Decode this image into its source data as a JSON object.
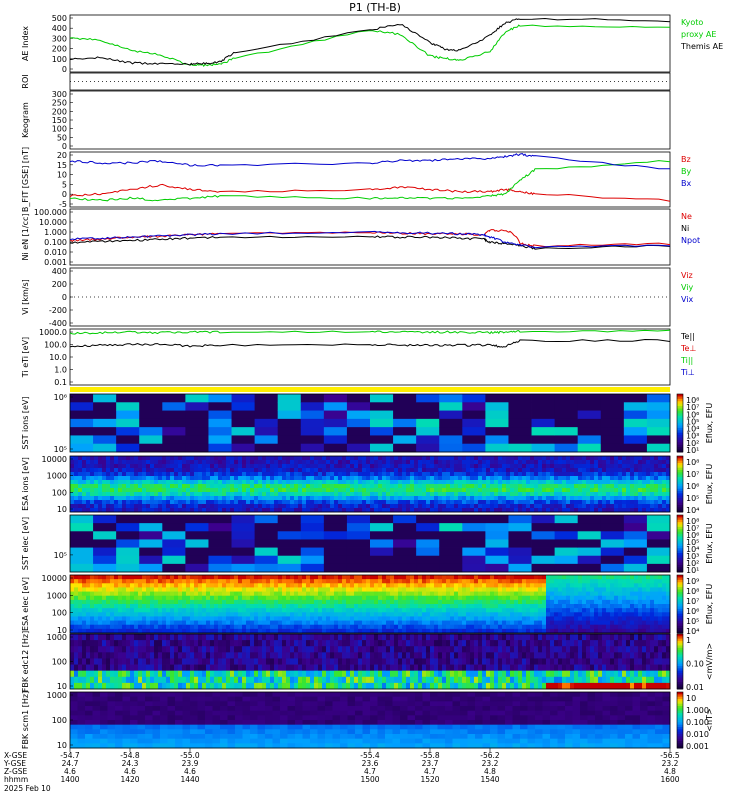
{
  "title": "P1  (TH-B)",
  "panels": [
    {
      "id": "ae",
      "ylabel": "AE Index",
      "ticks": [
        "500",
        "400",
        "300",
        "200",
        "100",
        "0"
      ],
      "legend": [
        {
          "text": "Kyoto",
          "color": "#00cc00"
        },
        {
          "text": "proxy AE",
          "color": "#00cc00"
        },
        {
          "text": "Themis AE",
          "color": "#000000"
        }
      ]
    },
    {
      "id": "roi",
      "ylabel": "ROI",
      "ticks": [],
      "legend": []
    },
    {
      "id": "keogram",
      "ylabel": "Keogram",
      "ticks": [
        "300",
        "250",
        "200",
        "150",
        "100",
        "50",
        "0"
      ],
      "legend": []
    },
    {
      "id": "bfit",
      "ylabel": "B_FIT [GSE] [nT]",
      "ticks": [
        "20",
        "15",
        "10",
        "5",
        "0",
        "-5"
      ],
      "legend": [
        {
          "text": "Bz",
          "color": "#dd0000"
        },
        {
          "text": "By",
          "color": "#00cc00"
        },
        {
          "text": "Bx",
          "color": "#0000cc"
        }
      ]
    },
    {
      "id": "ni",
      "ylabel": "Ni eN [1/cc]",
      "ticks": [
        "100.000",
        "10.000",
        "1.000",
        "0.100",
        "0.010",
        "0.001"
      ],
      "legend": [
        {
          "text": "Ne",
          "color": "#dd0000"
        },
        {
          "text": "Ni",
          "color": "#000000"
        },
        {
          "text": "Npot",
          "color": "#0000cc"
        }
      ]
    },
    {
      "id": "vi",
      "ylabel": "Vi [km/s]",
      "ticks": [
        "400",
        "200",
        "0",
        "-200",
        "-400"
      ],
      "legend": [
        {
          "text": "Viz",
          "color": "#dd0000"
        },
        {
          "text": "Viy",
          "color": "#00cc00"
        },
        {
          "text": "Vix",
          "color": "#0000cc"
        }
      ]
    },
    {
      "id": "ti",
      "ylabel": "Ti eTi [eV]",
      "ticks": [
        "1000.0",
        "100.0",
        "10.0",
        "1.0",
        "0.1"
      ],
      "legend": [
        {
          "text": "Te||",
          "color": "#000000"
        },
        {
          "text": "Te⊥",
          "color": "#dd0000"
        },
        {
          "text": "Ti||",
          "color": "#00cc00"
        },
        {
          "text": "Ti⊥",
          "color": "#0000cc"
        }
      ]
    },
    {
      "id": "sst_i",
      "ylabel": "SST ions [eV]",
      "ticks": [
        "10⁶",
        "10⁵"
      ],
      "colorbar": [
        "10⁸",
        "10⁷",
        "10⁶",
        "10⁵",
        "10⁴",
        "10³",
        "10²",
        "10¹"
      ],
      "cblabel": "Eflux, EFU"
    },
    {
      "id": "esa_i",
      "ylabel": "ESA ions [eV]",
      "ticks": [
        "10000",
        "1000",
        "100",
        "10"
      ],
      "colorbar": [
        "10⁸",
        "10⁷",
        "10⁶",
        "10⁵",
        "10⁴"
      ],
      "cblabel": "Eflux, EFU"
    },
    {
      "id": "sst_e",
      "ylabel": "SST elec [eV]",
      "ticks": [
        "10⁵"
      ],
      "colorbar": [
        "10⁸",
        "10⁷",
        "10⁶",
        "10⁵",
        "10⁴",
        "10³",
        "10²",
        "10¹"
      ],
      "cblabel": "Eflux, EFU"
    },
    {
      "id": "esa_e",
      "ylabel": "ESA elec [eV]",
      "ticks": [
        "10000",
        "1000",
        "100",
        "10"
      ],
      "colorbar": [
        "10⁹",
        "10⁸",
        "10⁷",
        "10⁶",
        "10⁵",
        "10⁴"
      ],
      "cblabel": "Eflux, EFU"
    },
    {
      "id": "fbk_e",
      "ylabel": "FBK edc12 [Hz]",
      "ticks": [
        "1000",
        "100",
        "10"
      ],
      "colorbar": [
        "1",
        "0.10",
        "0.01"
      ],
      "cblabel": "<mV/m>"
    },
    {
      "id": "fbk_b",
      "ylabel": "FBK scm1 [Hz]",
      "ticks": [
        "1000",
        "100",
        "10"
      ],
      "colorbar": [
        "10",
        "1.000",
        "0.100",
        "0.010",
        "0.001"
      ],
      "cblabel": "<nT>"
    }
  ],
  "xaxis": {
    "row_labels": [
      "X-GSE",
      "Y-GSE",
      "Z-GSE",
      "hhmm",
      "2025 Feb 10"
    ],
    "columns": [
      {
        "x": "-54.7",
        "y": "24.7",
        "z": "4.6",
        "t": "1400"
      },
      {
        "x": "-54.8",
        "y": "24.3",
        "z": "4.6",
        "t": "1420"
      },
      {
        "x": "-55.0",
        "y": "23.9",
        "z": "4.6",
        "t": "1440"
      },
      {
        "x": "-55.4",
        "y": "23.6",
        "z": "4.7",
        "t": "1500"
      },
      {
        "x": "-55.8",
        "y": "23.7",
        "z": "4.7",
        "t": "1520"
      },
      {
        "x": "-56.2",
        "y": "23.2",
        "z": "4.8",
        "t": "1540"
      },
      {
        "x": "-56.5",
        "y": "23.2",
        "z": "4.8",
        "t": "1600"
      }
    ]
  },
  "chart_data": [
    {
      "type": "line",
      "title": "P1  (TH-B)",
      "ylabel": "AE Index",
      "xlabel": "hhmm",
      "ylim": [
        0,
        500
      ],
      "x": [
        1400,
        1410,
        1420,
        1430,
        1440,
        1445,
        1450,
        1455,
        1500,
        1510,
        1520,
        1525,
        1530,
        1540,
        1545,
        1550,
        1600
      ],
      "series": [
        {
          "name": "Kyoto proxy AE",
          "color": "#00cc00",
          "values": [
            300,
            280,
            190,
            150,
            60,
            60,
            70,
            120,
            370,
            330,
            140,
            120,
            100,
            180,
            350,
            410,
            390
          ]
        },
        {
          "name": "Themis AE",
          "color": "#000000",
          "values": [
            110,
            130,
            80,
            70,
            70,
            75,
            90,
            170,
            370,
            420,
            260,
            200,
            190,
            320,
            430,
            470,
            450
          ]
        }
      ]
    },
    {
      "type": "line",
      "ylabel": "B_FIT [GSE] [nT]",
      "ylim": [
        -5,
        20
      ],
      "x": [
        1400,
        1410,
        1420,
        1430,
        1440,
        1450,
        1500,
        1510,
        1520,
        1530,
        1540,
        1545,
        1550,
        1555,
        1600
      ],
      "series": [
        {
          "name": "Bz",
          "color": "#dd0000",
          "values": [
            0,
            1,
            3,
            5,
            3,
            2,
            3,
            4,
            3,
            2,
            2,
            3,
            2,
            1,
            -2
          ]
        },
        {
          "name": "By",
          "color": "#00cc00",
          "values": [
            -1,
            -2,
            -1,
            -2,
            -1,
            0,
            -1,
            -1,
            -1,
            -1,
            0,
            1,
            7,
            12,
            16
          ]
        },
        {
          "name": "Bx",
          "color": "#0000cc",
          "values": [
            16,
            15,
            15,
            16,
            14,
            14,
            15,
            16,
            16,
            17,
            17,
            18,
            19,
            18,
            12
          ]
        }
      ]
    },
    {
      "type": "line",
      "ylabel": "Ni eN [1/cc]",
      "ylim": [
        0.001,
        100
      ],
      "x": [
        1400,
        1410,
        1420,
        1430,
        1440,
        1450,
        1500,
        1510,
        1520,
        1530,
        1538,
        1540,
        1545,
        1550,
        1555,
        1600
      ],
      "series": [
        {
          "name": "Ne",
          "color": "#dd0000",
          "values": [
            0.15,
            0.2,
            0.3,
            0.35,
            0.5,
            0.6,
            0.8,
            0.7,
            0.6,
            0.6,
            0.5,
            1.2,
            1.2,
            0.08,
            0.05,
            0.08
          ]
        },
        {
          "name": "Ni",
          "color": "#000000",
          "values": [
            0.1,
            0.12,
            0.15,
            0.2,
            0.25,
            0.3,
            0.35,
            0.3,
            0.3,
            0.25,
            0.2,
            0.1,
            0.08,
            0.05,
            0.03,
            0.05
          ]
        },
        {
          "name": "Npot",
          "color": "#0000cc",
          "values": [
            0.2,
            0.25,
            0.3,
            0.4,
            0.5,
            0.6,
            0.9,
            0.8,
            0.7,
            0.6,
            0.5,
            0.3,
            0.1,
            0.06,
            0.04,
            0.06
          ]
        }
      ]
    },
    {
      "type": "line",
      "ylabel": "Ti eTi [eV]",
      "ylim": [
        0.1,
        1000
      ],
      "x": [
        1400,
        1410,
        1420,
        1430,
        1440,
        1450,
        1500,
        1510,
        1520,
        1530,
        1540,
        1545,
        1550,
        1600
      ],
      "series": [
        {
          "name": "Ti||",
          "color": "#00cc00",
          "values": [
            500,
            550,
            600,
            550,
            600,
            600,
            650,
            600,
            600,
            600,
            550,
            600,
            700,
            700
          ]
        },
        {
          "name": "Te||",
          "color": "#000000",
          "values": [
            60,
            70,
            80,
            80,
            60,
            70,
            80,
            70,
            70,
            70,
            70,
            50,
            150,
            150
          ]
        }
      ]
    }
  ]
}
